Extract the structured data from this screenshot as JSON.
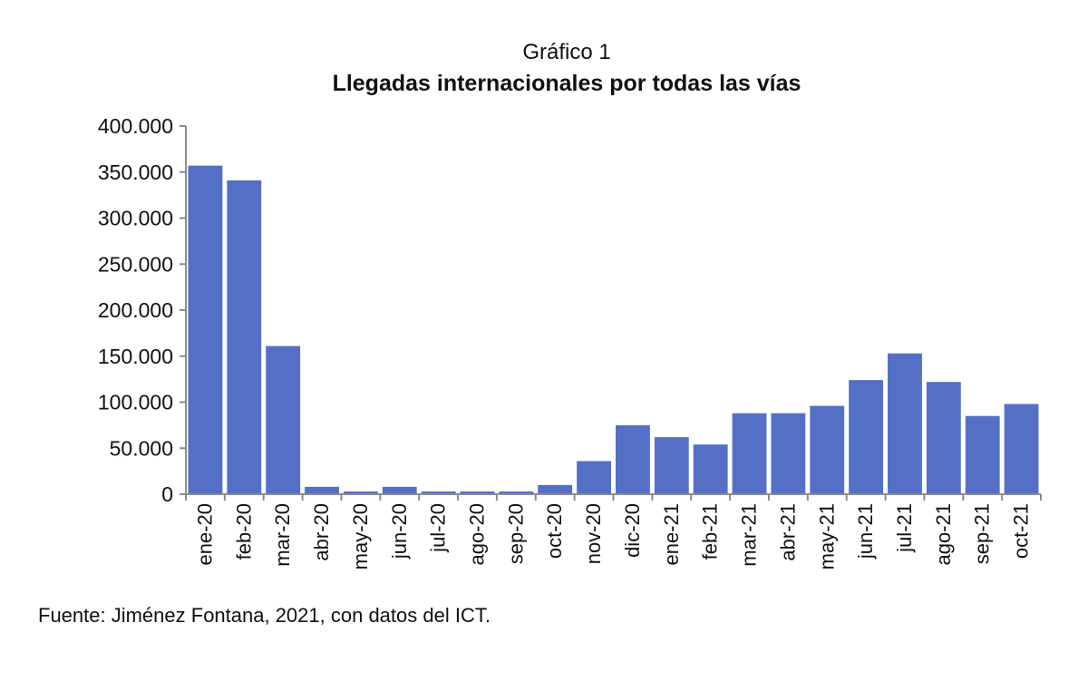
{
  "chart_data": {
    "type": "bar",
    "supertitle": "Gráfico 1",
    "title": "Llegadas internacionales por todas las vías",
    "xlabel": "",
    "ylabel": "",
    "ylim": [
      0,
      400000
    ],
    "yticks": [
      0,
      50000,
      100000,
      150000,
      200000,
      250000,
      300000,
      350000,
      400000
    ],
    "ytick_labels": [
      "0",
      "50.000",
      "100.000",
      "150.000",
      "200.000",
      "250.000",
      "300.000",
      "350.000",
      "400.000"
    ],
    "categories": [
      "ene-20",
      "feb-20",
      "mar-20",
      "abr-20",
      "may-20",
      "jun-20",
      "jul-20",
      "ago-20",
      "sep-20",
      "oct-20",
      "nov-20",
      "dic-20",
      "ene-21",
      "feb-21",
      "mar-21",
      "abr-21",
      "may-21",
      "jun-21",
      "jul-21",
      "ago-21",
      "sep-21",
      "oct-21"
    ],
    "values": [
      357000,
      341000,
      161000,
      8000,
      3000,
      8000,
      3000,
      3000,
      3000,
      10000,
      36000,
      75000,
      62000,
      54000,
      88000,
      88000,
      96000,
      124000,
      153000,
      122000,
      85000,
      98000
    ],
    "bar_color": "#5470c6",
    "grid": false,
    "legend": "none"
  },
  "source": "Fuente: Jiménez Fontana, 2021, con datos del ICT."
}
